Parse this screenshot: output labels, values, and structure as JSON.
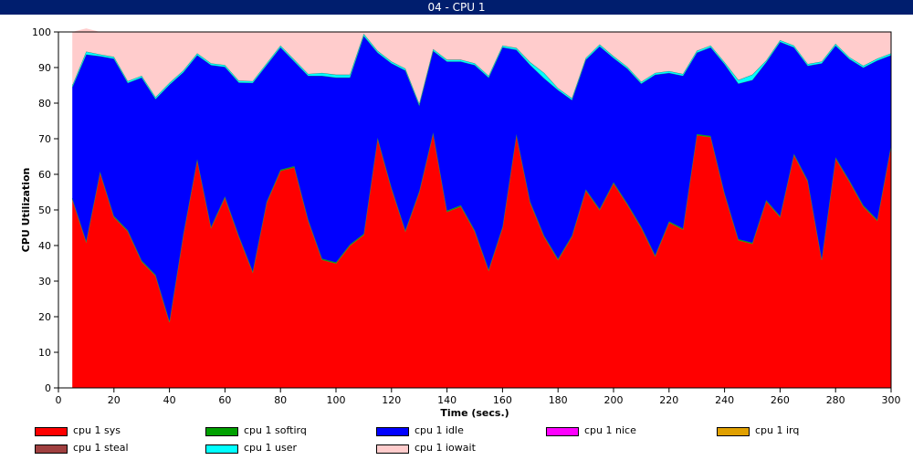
{
  "window": {
    "title": "04 - CPU 1"
  },
  "chart_data": {
    "type": "area",
    "stacked": true,
    "title": "",
    "xlabel": "Time (secs.)",
    "ylabel": "CPU Utilization",
    "xlim": [
      0,
      300
    ],
    "ylim": [
      0,
      100
    ],
    "xticks": [
      0,
      20,
      40,
      60,
      80,
      100,
      120,
      140,
      160,
      180,
      200,
      220,
      240,
      260,
      280,
      300
    ],
    "yticks": [
      0,
      10,
      20,
      30,
      40,
      50,
      60,
      70,
      80,
      90,
      100
    ],
    "grid": false,
    "legend": "bottom",
    "x": [
      5,
      10,
      15,
      20,
      25,
      30,
      35,
      40,
      45,
      50,
      55,
      60,
      65,
      70,
      75,
      80,
      85,
      90,
      95,
      100,
      105,
      110,
      115,
      120,
      125,
      130,
      135,
      140,
      145,
      150,
      155,
      160,
      165,
      170,
      175,
      180,
      185,
      190,
      195,
      200,
      205,
      210,
      215,
      220,
      225,
      230,
      235,
      240,
      245,
      250,
      255,
      260,
      265,
      270,
      275,
      280,
      285,
      290,
      295,
      300
    ],
    "series": [
      {
        "name": "cpu 1 sys",
        "color": "#ff0000",
        "values": [
          53,
          41,
          60.5,
          48,
          44,
          35.5,
          31.5,
          18.5,
          43,
          64,
          45,
          53.5,
          42.5,
          32.5,
          52,
          61,
          62,
          47,
          36,
          35,
          40,
          43,
          70,
          56,
          44,
          55,
          71.5,
          49.5,
          51,
          44,
          33,
          45,
          71,
          52,
          42.5,
          36,
          42.5,
          55.5,
          50,
          57.5,
          51.5,
          45,
          37,
          46.5,
          44.5,
          71,
          70.5,
          54.5,
          41.5,
          40.5,
          52.5,
          48,
          65.5,
          58,
          36,
          64.5,
          58,
          51,
          47,
          68
        ]
      },
      {
        "name": "cpu 1 softirq",
        "color": "#00a000",
        "values": [
          0.3,
          0.3,
          0.3,
          0.3,
          0.3,
          0.3,
          0.3,
          0.3,
          0.3,
          0.3,
          0.3,
          0.3,
          0.3,
          0.3,
          0.3,
          0.3,
          0.3,
          0.3,
          0.3,
          0.3,
          0.3,
          0.3,
          0.3,
          0.3,
          0.3,
          0.3,
          0.3,
          0.3,
          0.3,
          0.3,
          0.3,
          0.3,
          0.3,
          0.3,
          0.3,
          0.3,
          0.3,
          0.3,
          0.3,
          0.3,
          0.3,
          0.3,
          0.3,
          0.3,
          0.3,
          0.3,
          0.3,
          0.3,
          0.3,
          0.3,
          0.3,
          0.3,
          0.3,
          0.3,
          0.3,
          0.3,
          0.3,
          0.3,
          0.3,
          0.3
        ]
      },
      {
        "name": "cpu 1 idle",
        "color": "#0000ff",
        "values": [
          31.2,
          52.4,
          32.4,
          44.2,
          41.4,
          51.4,
          49.4,
          66.4,
          45.4,
          29.2,
          45.4,
          36.4,
          43,
          52.9,
          38.4,
          34.4,
          29.4,
          40.4,
          51.4,
          51.9,
          46.9,
          55.6,
          23.9,
          34.9,
          44.9,
          24.1,
          22.9,
          41.9,
          40.4,
          46.4,
          53.9,
          50.4,
          23.7,
          38.4,
          44.2,
          47.4,
          38.1,
          36.4,
          45.7,
          34.9,
          37.9,
          40.2,
          50.7,
          41.7,
          42.9,
          22.9,
          24.9,
          36.2,
          43.7,
          45.7,
          38.7,
          48.9,
          29.9,
          32.2,
          54.9,
          31.4,
          34.1,
          38.7,
          44.7,
          25.2
        ]
      },
      {
        "name": "cpu 1 nice",
        "color": "#ff00ff",
        "values": [
          0,
          0,
          0,
          0,
          0,
          0,
          0,
          0,
          0,
          0,
          0,
          0,
          0,
          0,
          0,
          0,
          0,
          0,
          0,
          0,
          0,
          0,
          0,
          0,
          0,
          0,
          0,
          0,
          0,
          0,
          0,
          0,
          0,
          0,
          0,
          0,
          0,
          0,
          0,
          0,
          0,
          0,
          0,
          0,
          0,
          0,
          0,
          0,
          0,
          0,
          0,
          0,
          0,
          0,
          0,
          0,
          0,
          0,
          0,
          0
        ]
      },
      {
        "name": "cpu 1 irq",
        "color": "#e0a000",
        "values": [
          0,
          0,
          0,
          0,
          0,
          0,
          0,
          0,
          0,
          0,
          0,
          0,
          0,
          0,
          0,
          0,
          0,
          0,
          0,
          0,
          0,
          0,
          0,
          0,
          0,
          0,
          0,
          0,
          0,
          0,
          0,
          0,
          0,
          0,
          0,
          0,
          0,
          0,
          0,
          0,
          0,
          0,
          0,
          0,
          0,
          0,
          0,
          0,
          0,
          0,
          0,
          0,
          0,
          0,
          0,
          0,
          0,
          0,
          0,
          0
        ]
      },
      {
        "name": "cpu 1 steal",
        "color": "#a04040",
        "values": [
          0,
          0,
          0,
          0,
          0,
          0,
          0,
          0,
          0,
          0,
          0,
          0,
          0,
          0,
          0,
          0,
          0,
          0,
          0,
          0,
          0,
          0,
          0,
          0,
          0,
          0,
          0,
          0,
          0,
          0,
          0,
          0,
          0,
          0,
          0,
          0,
          0,
          0,
          0,
          0,
          0,
          0,
          0,
          0,
          0,
          0,
          0,
          0,
          0,
          0,
          0,
          0,
          0,
          0,
          0,
          0,
          0,
          0,
          0,
          0
        ]
      },
      {
        "name": "cpu 1 user",
        "color": "#00ffff",
        "values": [
          0.5,
          0.8,
          0.5,
          0.5,
          0.5,
          0.5,
          0.5,
          0.5,
          0.5,
          0.5,
          0.5,
          0.5,
          0.5,
          0.5,
          0.5,
          0.5,
          0.5,
          0.5,
          0.8,
          0.8,
          0.8,
          0.6,
          0.5,
          0.5,
          0.5,
          0.5,
          0.5,
          0.5,
          0.5,
          0.5,
          0.5,
          0.5,
          0.5,
          0.8,
          1.5,
          0.5,
          0.5,
          0.5,
          0.5,
          0.5,
          0.5,
          0.5,
          0.5,
          0.5,
          0.5,
          0.5,
          0.5,
          0.5,
          1,
          1.5,
          0.5,
          0.5,
          0.5,
          0.5,
          0.5,
          0.5,
          0.5,
          0.5,
          0.5,
          0.5
        ]
      },
      {
        "name": "cpu 1 iowait",
        "color": "#ffcccc",
        "values": [
          15,
          6.5,
          6.3,
          7,
          13.8,
          12.3,
          18.3,
          14.3,
          10.8,
          6,
          8.8,
          9.3,
          13.7,
          13.8,
          8.8,
          3.8,
          7.8,
          11.8,
          11.5,
          12,
          12,
          0.5,
          5.3,
          8.3,
          10.3,
          20.1,
          4.8,
          7.8,
          7.8,
          8.8,
          12.3,
          3.8,
          4.5,
          8.5,
          11.5,
          15.8,
          18.6,
          7.3,
          3.5,
          6.8,
          9.8,
          14,
          11.5,
          11,
          11.8,
          5.3,
          3.8,
          8.5,
          13.5,
          12,
          8,
          2.3,
          3.8,
          9,
          8.3,
          3.3,
          7.1,
          9.5,
          7.5,
          6
        ]
      }
    ]
  }
}
